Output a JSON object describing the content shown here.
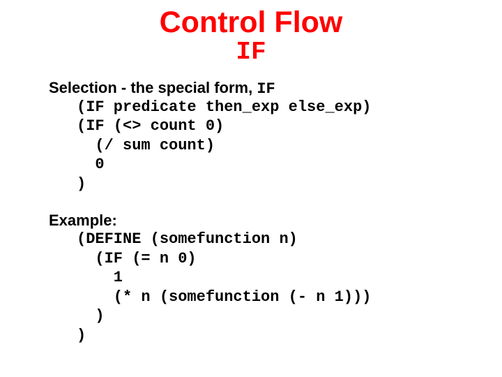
{
  "title": "Control Flow",
  "subtitle": "IF",
  "selection": {
    "label_prefix": "Selection - the special form, ",
    "label_code": "IF",
    "code": "(IF predicate then_exp else_exp)\n(IF (<> count 0)\n  (/ sum count)\n  0\n)"
  },
  "example": {
    "label": "Example:",
    "code": "(DEFINE (somefunction n)\n  (IF (= n 0)\n    1\n    (* n (somefunction (- n 1)))\n  )\n)"
  },
  "styling": {
    "title_color": "#ff0000",
    "text_color": "#000000",
    "background_color": "#ffffff",
    "title_fontsize": 43,
    "subtitle_fontsize": 36,
    "body_fontsize": 22,
    "title_font": "Comic Sans MS",
    "code_font": "Courier New"
  }
}
